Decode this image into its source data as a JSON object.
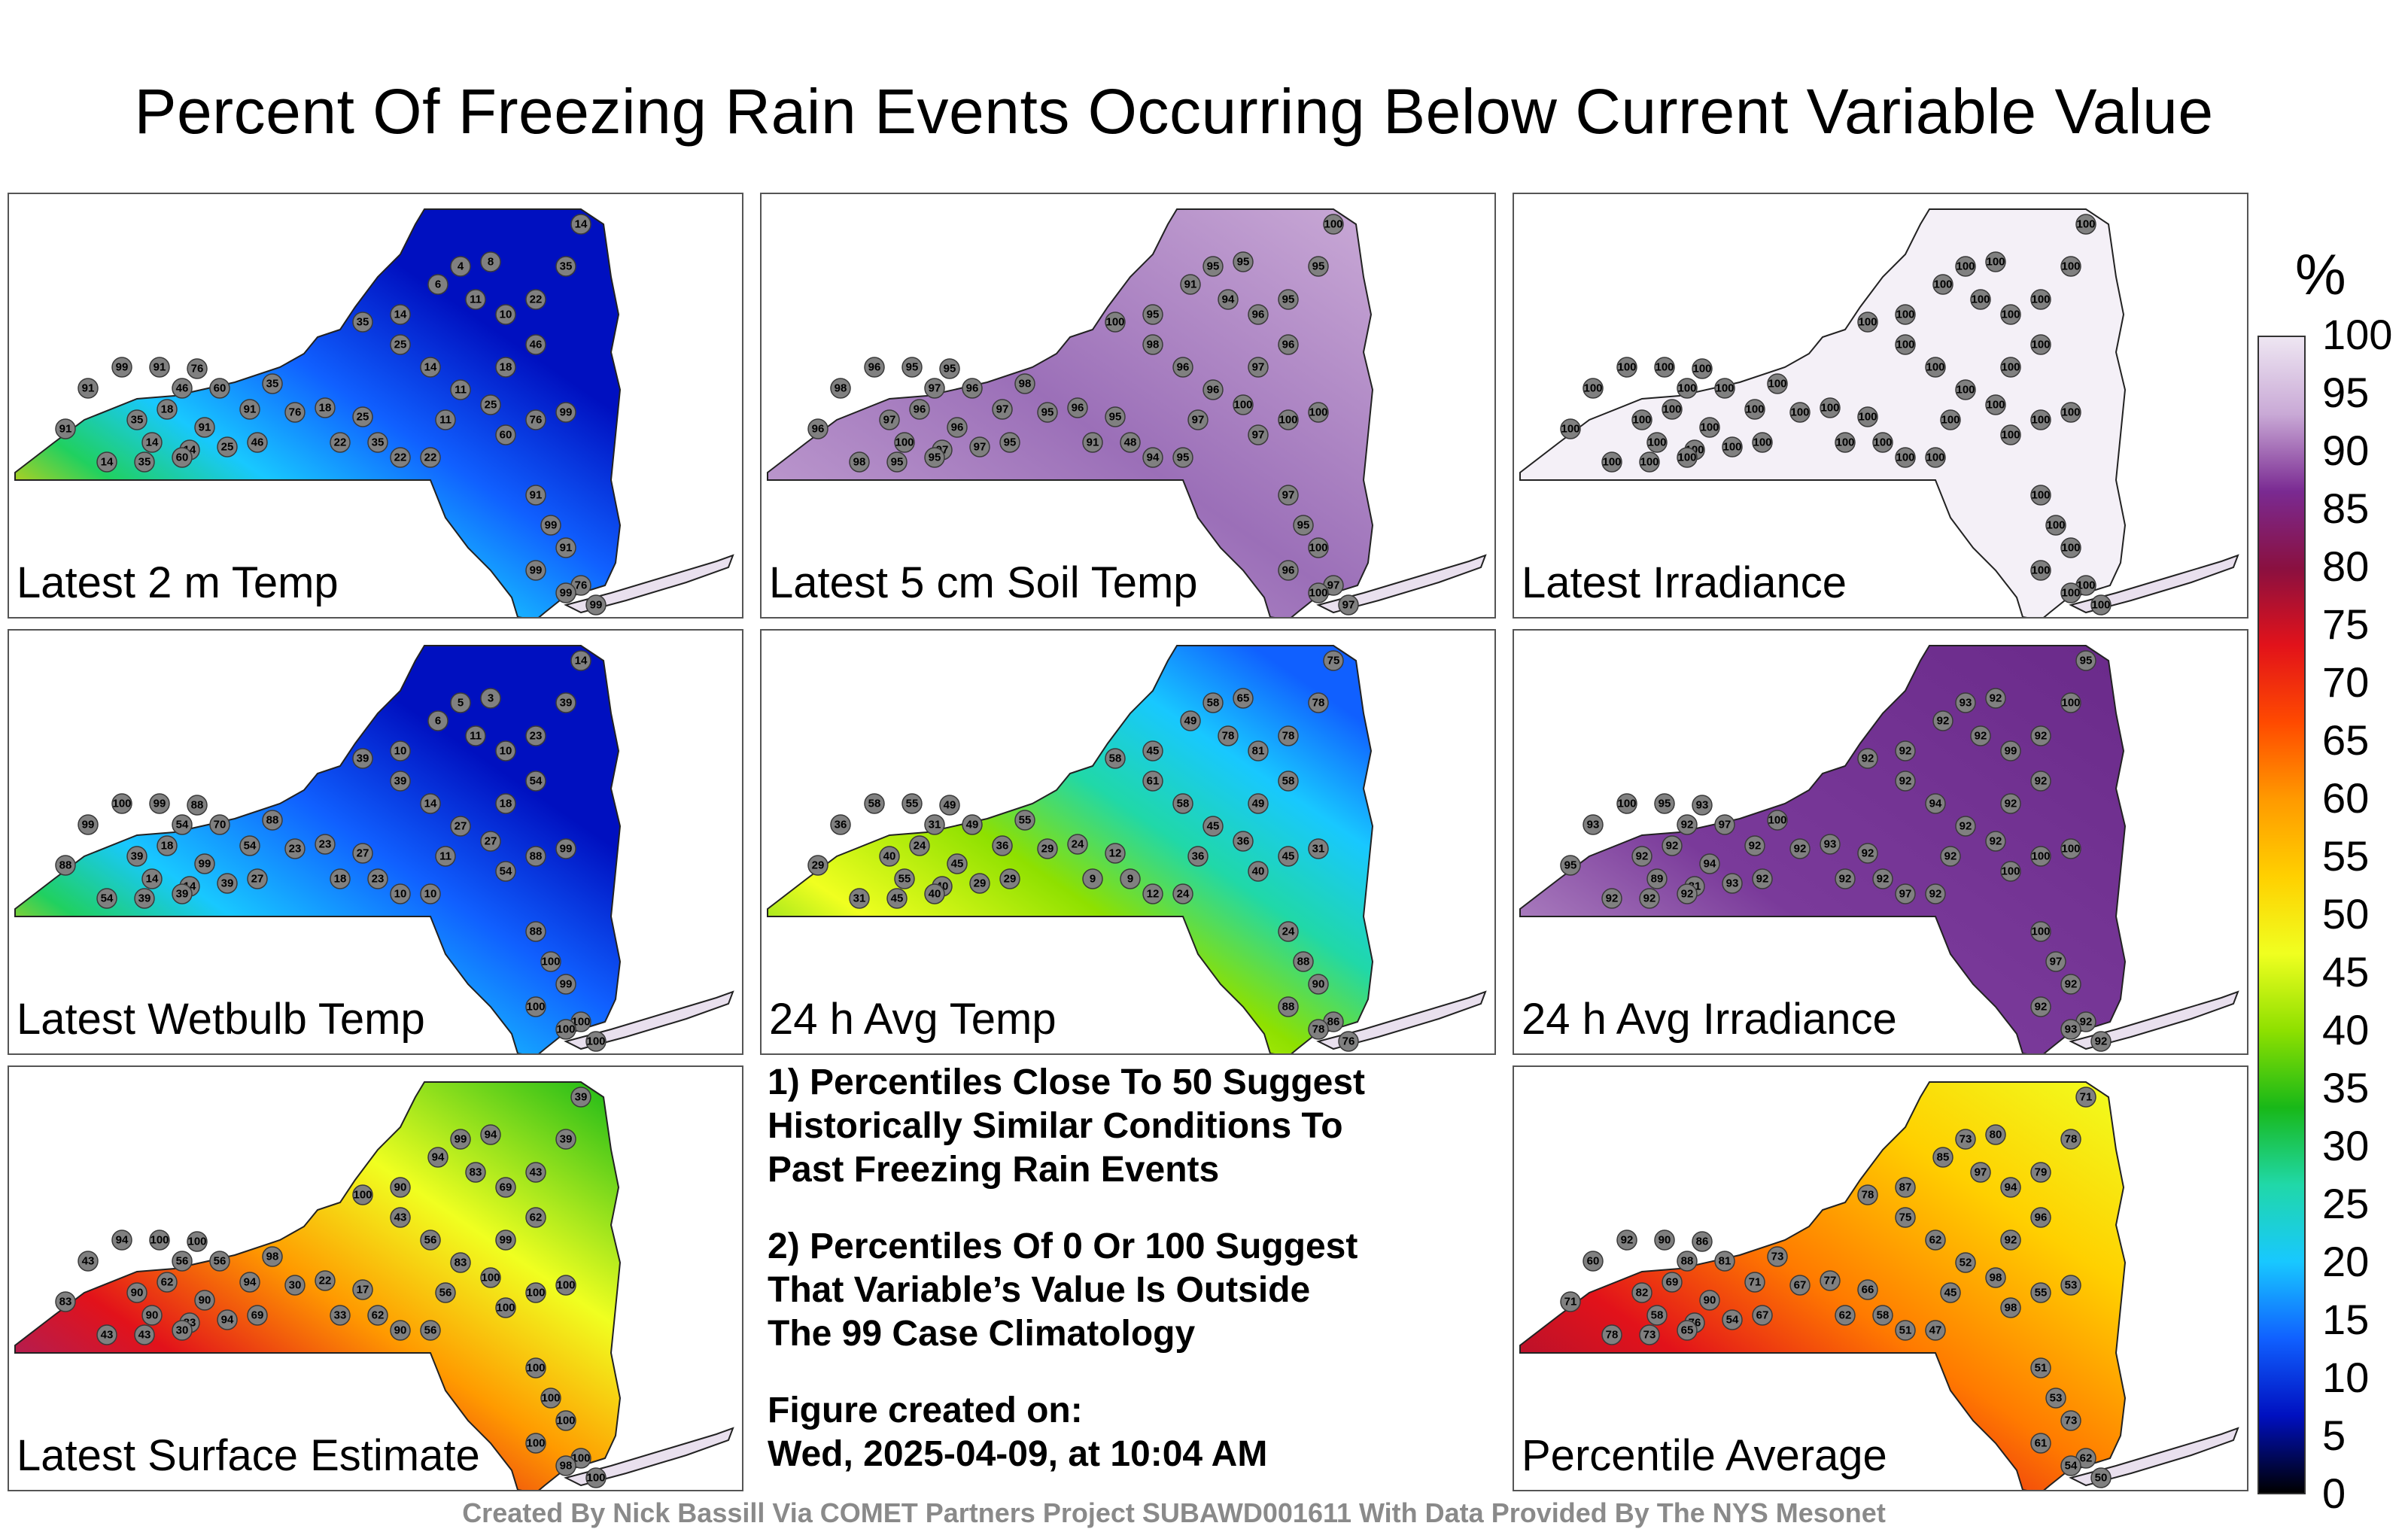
{
  "title": "Percent Of Freezing Rain Events Occurring Below Current Variable Value",
  "colorbar": {
    "unit": "%",
    "ticks": [
      "100",
      "95",
      "90",
      "85",
      "80",
      "75",
      "70",
      "65",
      "60",
      "55",
      "50",
      "45",
      "40",
      "35",
      "30",
      "25",
      "20",
      "15",
      "10",
      "5",
      "0"
    ],
    "colors": [
      "#eee6f2",
      "#c9a9d6",
      "#7a2a92",
      "#8a1040",
      "#e2121a",
      "#ff4a00",
      "#ff9a00",
      "#ffd000",
      "#f0ff20",
      "#8ee000",
      "#18b818",
      "#20d8a8",
      "#18c8ff",
      "#1060ff",
      "#0010c0",
      "#000000"
    ]
  },
  "panels": [
    {
      "label": "Latest 2 m Temp",
      "bg": "rainbow2m",
      "stations": [
        "99",
        "91",
        "76",
        "91",
        "46",
        "60",
        "35",
        "91",
        "91",
        "35",
        "18",
        "91",
        "14",
        "14",
        "25",
        "46",
        "14",
        "35",
        "60",
        "76",
        "18",
        "25",
        "22",
        "35",
        "22",
        "22",
        "11",
        "11",
        "14",
        "25",
        "35",
        "14",
        "6",
        "4",
        "8",
        "11",
        "10",
        "22",
        "14",
        "35",
        "46",
        "18",
        "25",
        "60",
        "76",
        "99",
        "91",
        "99",
        "91",
        "76",
        "99",
        "99",
        "99"
      ]
    },
    {
      "label": "Latest 5 cm Soil Temp",
      "bg": "purple",
      "stations": [
        "96",
        "95",
        "95",
        "96",
        "97",
        "96",
        "98",
        "98",
        "96",
        "97",
        "96",
        "97",
        "100",
        "97",
        "97",
        "95",
        "98",
        "95",
        "95",
        "95",
        "96",
        "95",
        "91",
        "48",
        "94",
        "95",
        "97",
        "96",
        "96",
        "98",
        "100",
        "95",
        "91",
        "95",
        "95",
        "94",
        "96",
        "95",
        "100",
        "95",
        "96",
        "97",
        "100",
        "97",
        "100",
        "100",
        "97",
        "95",
        "100",
        "97",
        "96",
        "100",
        "97"
      ]
    },
    {
      "label": "Latest Irradiance",
      "bg": "white",
      "stations": [
        "100",
        "100",
        "100",
        "100",
        "100",
        "100",
        "100",
        "100",
        "100",
        "100",
        "100",
        "100",
        "100",
        "100",
        "100",
        "100",
        "100",
        "100",
        "100",
        "100",
        "100",
        "100",
        "100",
        "100",
        "100",
        "100",
        "100",
        "100",
        "100",
        "100",
        "100",
        "100",
        "100",
        "100",
        "100",
        "100",
        "100",
        "100",
        "100",
        "100",
        "100",
        "100",
        "100",
        "100",
        "100",
        "100",
        "100",
        "100",
        "100",
        "100",
        "100",
        "100",
        "100"
      ]
    },
    {
      "label": "Latest Wetbulb Temp",
      "bg": "rainbowWB",
      "stations": [
        "100",
        "99",
        "88",
        "99",
        "54",
        "70",
        "88",
        "99",
        "88",
        "39",
        "18",
        "54",
        "14",
        "14",
        "39",
        "27",
        "54",
        "39",
        "39",
        "23",
        "23",
        "27",
        "18",
        "23",
        "10",
        "10",
        "11",
        "27",
        "14",
        "39",
        "39",
        "10",
        "6",
        "5",
        "3",
        "11",
        "10",
        "23",
        "14",
        "39",
        "54",
        "18",
        "27",
        "54",
        "88",
        "99",
        "88",
        "100",
        "99",
        "100",
        "100",
        "100",
        "100"
      ]
    },
    {
      "label": "24 h Avg Temp",
      "bg": "rainbowAvg",
      "stations": [
        "58",
        "55",
        "49",
        "45",
        "31",
        "49",
        "55",
        "36",
        "29",
        "40",
        "24",
        "36",
        "55",
        "40",
        "29",
        "29",
        "31",
        "45",
        "40",
        "29",
        "24",
        "12",
        "9",
        "9",
        "12",
        "24",
        "36",
        "45",
        "58",
        "61",
        "58",
        "45",
        "49",
        "58",
        "65",
        "78",
        "81",
        "78",
        "75",
        "78",
        "58",
        "49",
        "36",
        "40",
        "45",
        "31",
        "24",
        "88",
        "90",
        "86",
        "88",
        "78",
        "76"
      ]
    },
    {
      "label": "24 h Avg Irradiance",
      "bg": "purple2",
      "stations": [
        "100",
        "95",
        "93",
        "94",
        "92",
        "97",
        "100",
        "93",
        "95",
        "92",
        "92",
        "92",
        "89",
        "81",
        "93",
        "92",
        "92",
        "92",
        "92",
        "92",
        "93",
        "92",
        "92",
        "92",
        "97",
        "92",
        "92",
        "92",
        "94",
        "92",
        "92",
        "92",
        "92",
        "93",
        "92",
        "92",
        "99",
        "92",
        "95",
        "100",
        "92",
        "92",
        "92",
        "100",
        "100",
        "100",
        "100",
        "97",
        "92",
        "92",
        "92",
        "93",
        "92"
      ]
    },
    {
      "label": "Latest Surface Estimate",
      "bg": "surface",
      "stations": [
        "94",
        "100",
        "100",
        "90",
        "56",
        "56",
        "98",
        "43",
        "83",
        "90",
        "62",
        "94",
        "90",
        "83",
        "94",
        "69",
        "43",
        "43",
        "30",
        "30",
        "22",
        "17",
        "33",
        "62",
        "90",
        "56",
        "56",
        "83",
        "56",
        "43",
        "100",
        "90",
        "94",
        "99",
        "94",
        "83",
        "69",
        "43",
        "39",
        "39",
        "62",
        "99",
        "100",
        "100",
        "100",
        "100",
        "100",
        "100",
        "100",
        "100",
        "100",
        "98",
        "100"
      ]
    },
    {
      "label": "Percentile Average",
      "bg": "average",
      "stations": [
        "92",
        "90",
        "86",
        "90",
        "88",
        "81",
        "73",
        "60",
        "71",
        "82",
        "69",
        "71",
        "58",
        "76",
        "54",
        "67",
        "78",
        "73",
        "65",
        "67",
        "77",
        "66",
        "62",
        "58",
        "51",
        "47",
        "45",
        "52",
        "62",
        "75",
        "78",
        "87",
        "85",
        "73",
        "80",
        "97",
        "94",
        "79",
        "71",
        "78",
        "96",
        "92",
        "98",
        "98",
        "55",
        "53",
        "51",
        "53",
        "73",
        "62",
        "61",
        "54",
        "50"
      ]
    }
  ],
  "notes": [
    "1) Percentiles Close To 50 Suggest\nHistorically Similar Conditions To\nPast Freezing Rain Events",
    "2) Percentiles Of 0 Or 100 Suggest\nThat Variable’s Value Is Outside\nThe 99 Case Climatology"
  ],
  "figure_created": "Figure created on:\nWed, 2025-04-09, at 10:04 AM",
  "footer": "Created By Nick Bassill Via COMET Partners Project SUBAWD001611 With Data Provided By The NYS Mesonet"
}
